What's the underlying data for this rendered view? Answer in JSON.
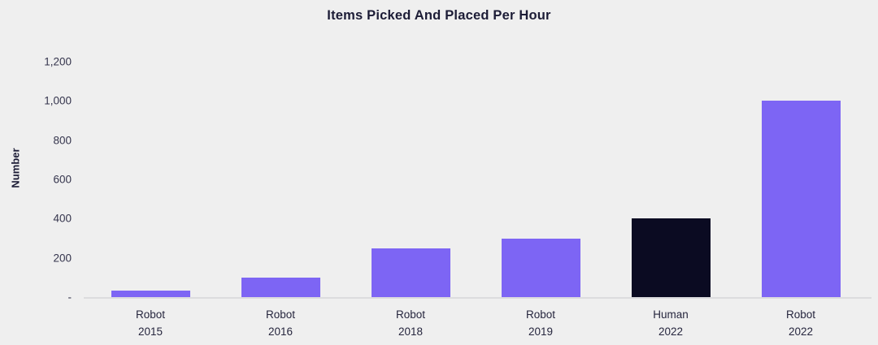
{
  "chart_data": {
    "type": "bar",
    "title": "Items Picked And Placed Per Hour",
    "xlabel": "",
    "ylabel": "Number",
    "categories": [
      "Robot 2015",
      "Robot 2016",
      "Robot 2018",
      "Robot 2019",
      "Human 2022",
      "Robot 2022"
    ],
    "category_lines": [
      [
        "Robot",
        "2015"
      ],
      [
        "Robot",
        "2016"
      ],
      [
        "Robot",
        "2018"
      ],
      [
        "Robot",
        "2019"
      ],
      [
        "Human",
        "2022"
      ],
      [
        "Robot",
        "2022"
      ]
    ],
    "values": [
      35,
      100,
      250,
      300,
      400,
      1000
    ],
    "bar_colors": [
      "#7d65f4",
      "#7d65f4",
      "#7d65f4",
      "#7d65f4",
      "#0b0b22",
      "#7d65f4"
    ],
    "ylim": [
      0,
      1200
    ],
    "y_ticks": [
      1200,
      1000,
      800,
      600,
      400,
      200,
      0
    ],
    "y_tick_labels": [
      "1,200",
      "1,000",
      "800",
      "600",
      "400",
      "200",
      "-"
    ],
    "grid": false,
    "legend": "none"
  },
  "colors": {
    "background": "#efefef",
    "bar_purple": "#7d65f4",
    "bar_dark": "#0b0b22",
    "axis_line": "#dcdcde",
    "title_text": "#1c1c36",
    "tick_text": "#35354d",
    "label_text": "#26263e"
  }
}
